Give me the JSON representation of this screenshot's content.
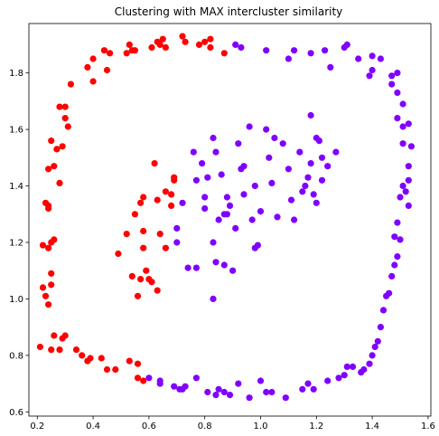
{
  "chart_data": {
    "type": "scatter",
    "title": "Clustering with MAX intercluster similarity",
    "xlabel": "",
    "ylabel": "",
    "xlim": [
      0.17,
      1.61
    ],
    "ylim": [
      0.585,
      1.975
    ],
    "xticks": [
      0.2,
      0.4,
      0.6,
      0.8,
      1.0,
      1.2,
      1.4,
      1.6
    ],
    "yticks": [
      0.6,
      0.8,
      1.0,
      1.2,
      1.4,
      1.6,
      1.8
    ],
    "xtick_labels": [
      "0.2",
      "0.4",
      "0.6",
      "0.8",
      "1.0",
      "1.2",
      "1.4",
      "1.6"
    ],
    "ytick_labels": [
      "0.6",
      "0.8",
      "1.0",
      "1.2",
      "1.4",
      "1.6",
      "1.8"
    ],
    "grid": false,
    "legend": "none",
    "series": [
      {
        "color": "#ff0000",
        "points": [
          [
            0.21,
            0.83
          ],
          [
            0.25,
            0.82
          ],
          [
            0.26,
            0.87
          ],
          [
            0.28,
            0.82
          ],
          [
            0.29,
            0.86
          ],
          [
            0.3,
            0.87
          ],
          [
            0.34,
            0.82
          ],
          [
            0.36,
            0.8
          ],
          [
            0.38,
            0.78
          ],
          [
            0.39,
            0.79
          ],
          [
            0.43,
            0.79
          ],
          [
            0.45,
            0.75
          ],
          [
            0.48,
            0.75
          ],
          [
            0.53,
            0.78
          ],
          [
            0.56,
            0.72
          ],
          [
            0.56,
            0.77
          ],
          [
            0.58,
            0.71
          ],
          [
            0.22,
            1.04
          ],
          [
            0.23,
            1.01
          ],
          [
            0.24,
            0.98
          ],
          [
            0.25,
            1.05
          ],
          [
            0.25,
            1.09
          ],
          [
            0.22,
            1.19
          ],
          [
            0.24,
            1.18
          ],
          [
            0.25,
            1.2
          ],
          [
            0.26,
            1.21
          ],
          [
            0.23,
            1.34
          ],
          [
            0.24,
            1.32
          ],
          [
            0.24,
            1.46
          ],
          [
            0.24,
            1.33
          ],
          [
            0.25,
            1.56
          ],
          [
            0.26,
            1.47
          ],
          [
            0.27,
            1.53
          ],
          [
            0.28,
            1.41
          ],
          [
            0.29,
            1.54
          ],
          [
            0.28,
            1.68
          ],
          [
            0.3,
            1.68
          ],
          [
            0.3,
            1.64
          ],
          [
            0.31,
            1.61
          ],
          [
            0.32,
            1.76
          ],
          [
            0.38,
            1.82
          ],
          [
            0.4,
            1.77
          ],
          [
            0.4,
            1.85
          ],
          [
            0.44,
            1.88
          ],
          [
            0.45,
            1.81
          ],
          [
            0.46,
            1.87
          ],
          [
            0.52,
            1.87
          ],
          [
            0.53,
            1.9
          ],
          [
            0.54,
            1.88
          ],
          [
            0.55,
            1.88
          ],
          [
            0.61,
            1.89
          ],
          [
            0.63,
            1.91
          ],
          [
            0.64,
            1.9
          ],
          [
            0.65,
            1.92
          ],
          [
            0.66,
            1.89
          ],
          [
            0.72,
            1.93
          ],
          [
            0.73,
            1.91
          ],
          [
            0.8,
            1.91
          ],
          [
            0.82,
            1.92
          ],
          [
            0.87,
            1.87
          ],
          [
            0.78,
            1.9
          ],
          [
            0.82,
            1.89
          ],
          [
            0.49,
            1.16
          ],
          [
            0.52,
            1.23
          ],
          [
            0.54,
            1.08
          ],
          [
            0.55,
            1.3
          ],
          [
            0.56,
            1.01
          ],
          [
            0.57,
            1.07
          ],
          [
            0.57,
            1.34
          ],
          [
            0.58,
            1.18
          ],
          [
            0.58,
            1.24
          ],
          [
            0.58,
            1.36
          ],
          [
            0.59,
            1.1
          ],
          [
            0.6,
            1.07
          ],
          [
            0.61,
            1.06
          ],
          [
            0.62,
            1.48
          ],
          [
            0.63,
            1.03
          ],
          [
            0.63,
            1.35
          ],
          [
            0.64,
            1.23
          ],
          [
            0.66,
            1.18
          ],
          [
            0.66,
            1.38
          ],
          [
            0.68,
            1.33
          ],
          [
            0.68,
            1.37
          ],
          [
            0.69,
            1.42
          ],
          [
            0.69,
            1.43
          ]
        ]
      },
      {
        "color": "#8000ff",
        "points": [
          [
            0.91,
            1.9
          ],
          [
            0.93,
            1.89
          ],
          [
            1.02,
            1.88
          ],
          [
            1.1,
            1.85
          ],
          [
            1.12,
            1.88
          ],
          [
            1.18,
            1.87
          ],
          [
            1.23,
            1.88
          ],
          [
            1.25,
            1.82
          ],
          [
            1.3,
            1.89
          ],
          [
            1.31,
            1.9
          ],
          [
            1.35,
            1.85
          ],
          [
            1.39,
            1.79
          ],
          [
            1.4,
            1.81
          ],
          [
            1.4,
            1.86
          ],
          [
            1.43,
            1.85
          ],
          [
            1.47,
            1.79
          ],
          [
            1.47,
            1.76
          ],
          [
            1.49,
            1.8
          ],
          [
            1.49,
            1.73
          ],
          [
            1.51,
            1.69
          ],
          [
            1.49,
            1.64
          ],
          [
            1.51,
            1.61
          ],
          [
            1.53,
            1.62
          ],
          [
            1.54,
            1.54
          ],
          [
            1.51,
            1.55
          ],
          [
            1.53,
            1.47
          ],
          [
            1.53,
            1.42
          ],
          [
            1.51,
            1.4
          ],
          [
            1.52,
            1.38
          ],
          [
            1.5,
            1.36
          ],
          [
            1.53,
            1.33
          ],
          [
            1.49,
            1.27
          ],
          [
            1.5,
            1.21
          ],
          [
            1.48,
            1.22
          ],
          [
            1.49,
            1.15
          ],
          [
            1.48,
            1.12
          ],
          [
            1.47,
            1.08
          ],
          [
            1.46,
            1.02
          ],
          [
            1.45,
            1.01
          ],
          [
            1.44,
            0.96
          ],
          [
            1.43,
            0.9
          ],
          [
            1.42,
            0.85
          ],
          [
            1.41,
            0.83
          ],
          [
            1.4,
            0.8
          ],
          [
            1.39,
            0.77
          ],
          [
            1.37,
            0.75
          ],
          [
            1.36,
            0.74
          ],
          [
            1.33,
            0.76
          ],
          [
            1.31,
            0.76
          ],
          [
            1.3,
            0.73
          ],
          [
            1.28,
            0.72
          ],
          [
            1.24,
            0.71
          ],
          [
            1.19,
            0.68
          ],
          [
            1.17,
            0.7
          ],
          [
            1.15,
            0.68
          ],
          [
            1.09,
            0.65
          ],
          [
            1.04,
            0.67
          ],
          [
            1.02,
            0.67
          ],
          [
            1.0,
            0.71
          ],
          [
            0.96,
            0.65
          ],
          [
            0.92,
            0.7
          ],
          [
            0.89,
            0.66
          ],
          [
            0.87,
            0.67
          ],
          [
            0.85,
            0.68
          ],
          [
            0.84,
            0.66
          ],
          [
            0.81,
            0.67
          ],
          [
            0.77,
            0.72
          ],
          [
            0.73,
            0.69
          ],
          [
            0.71,
            0.68
          ],
          [
            0.72,
            0.68
          ],
          [
            0.69,
            0.69
          ],
          [
            0.64,
            0.7
          ],
          [
            0.64,
            0.71
          ],
          [
            0.6,
            0.72
          ],
          [
            0.7,
            1.2
          ],
          [
            0.7,
            1.25
          ],
          [
            0.72,
            1.34
          ],
          [
            0.74,
            1.11
          ],
          [
            0.76,
            1.52
          ],
          [
            0.77,
            1.11
          ],
          [
            0.77,
            1.42
          ],
          [
            0.79,
            1.48
          ],
          [
            0.8,
            1.36
          ],
          [
            0.8,
            1.32
          ],
          [
            0.81,
            1.43
          ],
          [
            0.83,
            1.57
          ],
          [
            0.83,
            1.2
          ],
          [
            0.83,
            1.0
          ],
          [
            0.84,
            1.13
          ],
          [
            0.84,
            1.52
          ],
          [
            0.85,
            1.28
          ],
          [
            0.86,
            1.44
          ],
          [
            0.87,
            1.12
          ],
          [
            0.87,
            1.3
          ],
          [
            0.88,
            1.36
          ],
          [
            0.89,
            1.33
          ],
          [
            0.9,
            1.1
          ],
          [
            0.91,
            1.25
          ],
          [
            0.93,
            1.46
          ],
          [
            0.94,
            1.37
          ],
          [
            0.94,
            1.47
          ],
          [
            0.96,
            1.61
          ],
          [
            0.97,
            1.28
          ],
          [
            0.98,
            1.4
          ],
          [
            0.98,
            1.18
          ],
          [
            0.99,
            1.19
          ],
          [
            1.0,
            1.31
          ],
          [
            1.02,
            1.6
          ],
          [
            1.03,
            1.5
          ],
          [
            1.04,
            1.41
          ],
          [
            1.05,
            1.57
          ],
          [
            1.06,
            1.29
          ],
          [
            1.08,
            1.55
          ],
          [
            1.1,
            1.46
          ],
          [
            1.11,
            1.35
          ],
          [
            1.12,
            1.28
          ],
          [
            1.14,
            1.52
          ],
          [
            1.15,
            1.38
          ],
          [
            1.16,
            1.4
          ],
          [
            1.17,
            1.43
          ],
          [
            1.18,
            1.65
          ],
          [
            1.18,
            1.48
          ],
          [
            1.19,
            1.37
          ],
          [
            1.2,
            1.34
          ],
          [
            1.2,
            1.57
          ],
          [
            1.21,
            1.56
          ],
          [
            1.22,
            1.42
          ],
          [
            1.24,
            1.47
          ],
          [
            1.27,
            1.52
          ],
          [
            1.22,
            1.5
          ],
          [
            0.92,
            1.55
          ],
          [
            0.88,
            1.3
          ]
        ]
      }
    ]
  }
}
